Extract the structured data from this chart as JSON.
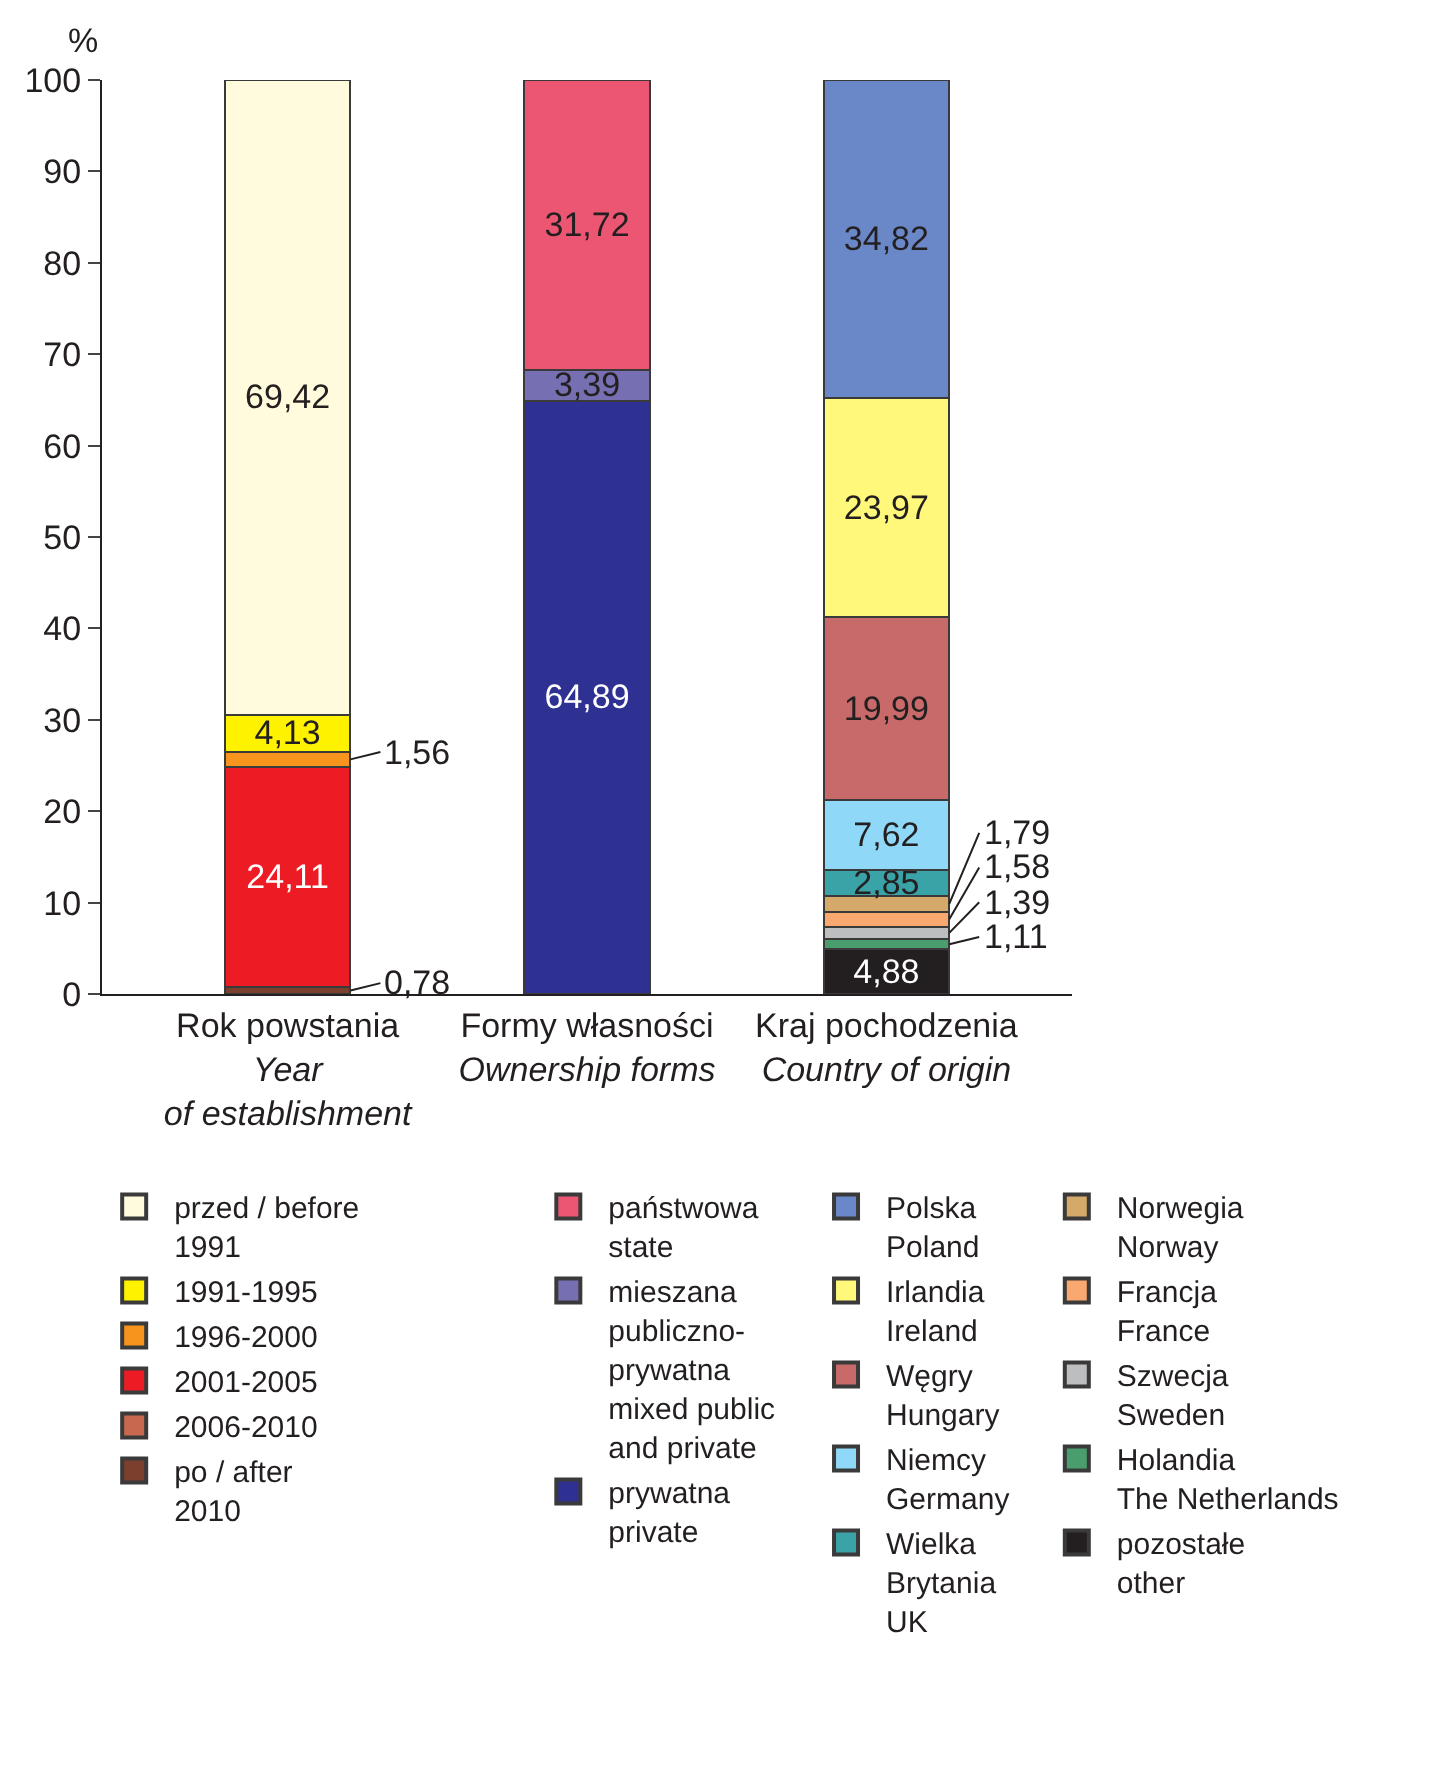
{
  "chart_data": {
    "type": "bar",
    "stacked": true,
    "ylabel": "%",
    "ylim": [
      0,
      100
    ],
    "yticks": [
      0,
      10,
      20,
      30,
      40,
      50,
      60,
      70,
      80,
      90,
      100
    ],
    "grid": false,
    "legend": "bottom",
    "categories": [
      "Rok powstania\nYear\nof establishment",
      "Formy własności\nOwnership forms",
      "Kraj pochodzenia\nCountry of origin"
    ],
    "series": [
      {
        "name": "po / after\n2010",
        "color": "#7b3f2e",
        "values": [
          0.78,
          null,
          null
        ],
        "value_labels": [
          "0,78",
          null,
          null
        ]
      },
      {
        "name": "2006-2010",
        "color": "#c8694f",
        "values": [
          0,
          null,
          null
        ],
        "value_labels": [
          null,
          null,
          null
        ]
      },
      {
        "name": "2001-2005",
        "color": "#ed1c24",
        "values": [
          24.11,
          null,
          null
        ],
        "value_labels": [
          "24,11",
          null,
          null
        ]
      },
      {
        "name": "1996-2000",
        "color": "#f7941d",
        "values": [
          1.56,
          null,
          null
        ],
        "value_labels": [
          "1,56",
          null,
          null
        ]
      },
      {
        "name": "1991-1995",
        "color": "#fff200",
        "values": [
          4.13,
          null,
          null
        ],
        "value_labels": [
          "4,13",
          null,
          null
        ]
      },
      {
        "name": "przed / before\n1991",
        "color": "#fffbdc",
        "values": [
          69.42,
          null,
          null
        ],
        "value_labels": [
          "69,42",
          null,
          null
        ]
      },
      {
        "name": "prywatna\nprivate",
        "color": "#2e3192",
        "values": [
          null,
          64.89,
          null
        ],
        "value_labels": [
          null,
          "64,89",
          null
        ]
      },
      {
        "name": "mieszana\npubliczno-\nprywatna\nmixed public\nand private",
        "color": "#7670b3",
        "values": [
          null,
          3.39,
          null
        ],
        "value_labels": [
          null,
          "3,39",
          null
        ]
      },
      {
        "name": "państwowa\nstate",
        "color": "#ec5672",
        "values": [
          null,
          31.72,
          null
        ],
        "value_labels": [
          null,
          "31,72",
          null
        ]
      },
      {
        "name": "pozostałe\nother",
        "color": "#231f20",
        "values": [
          null,
          null,
          4.88
        ],
        "value_labels": [
          null,
          null,
          "4,88"
        ]
      },
      {
        "name": "Holandia\nThe Netherlands",
        "color": "#4a9e6e",
        "values": [
          null,
          null,
          1.11
        ],
        "value_labels": [
          null,
          null,
          "1,11"
        ]
      },
      {
        "name": "Szwecja\nSweden",
        "color": "#bcbec0",
        "values": [
          null,
          null,
          1.39
        ],
        "value_labels": [
          null,
          null,
          "1,39"
        ]
      },
      {
        "name": "Francja\nFrance",
        "color": "#f9a870",
        "values": [
          null,
          null,
          1.58
        ],
        "value_labels": [
          null,
          null,
          "1,58"
        ]
      },
      {
        "name": "Norwegia\nNorway",
        "color": "#d4a96a",
        "values": [
          null,
          null,
          1.79
        ],
        "value_labels": [
          null,
          null,
          "1,79"
        ]
      },
      {
        "name": "Wielka\nBrytania\nUK",
        "color": "#3aa3a8",
        "values": [
          null,
          null,
          2.85
        ],
        "value_labels": [
          null,
          null,
          "2,85"
        ]
      },
      {
        "name": "Niemcy\nGermany",
        "color": "#8fd8f7",
        "values": [
          null,
          null,
          7.62
        ],
        "value_labels": [
          null,
          null,
          "7,62"
        ]
      },
      {
        "name": "Węgry\nHungary",
        "color": "#c86a6a",
        "values": [
          null,
          null,
          19.99
        ],
        "value_labels": [
          null,
          null,
          "19,99"
        ]
      },
      {
        "name": "Irlandia\nIreland",
        "color": "#fff87a",
        "values": [
          null,
          null,
          23.97
        ],
        "value_labels": [
          null,
          null,
          "23,97"
        ]
      },
      {
        "name": "Polska\nPoland",
        "color": "#6a87c8",
        "values": [
          null,
          null,
          34.82
        ],
        "value_labels": [
          null,
          null,
          "34,82"
        ]
      }
    ]
  }
}
